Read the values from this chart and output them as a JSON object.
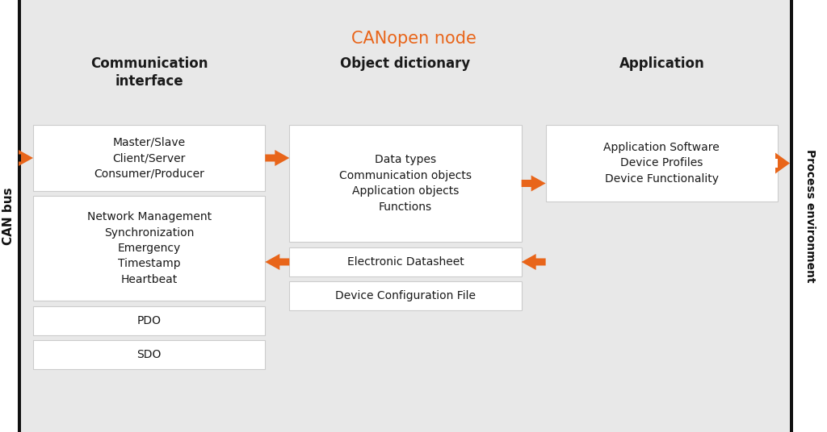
{
  "title": "CANopen node",
  "title_color": "#E8651A",
  "title_fontsize": 15,
  "bg_color": "#E8E8E8",
  "white_box_color": "#FFFFFF",
  "text_color": "#1A1A1A",
  "arrow_color": "#E8651A",
  "col1_header": "Communication\ninterface",
  "col2_header": "Object dictionary",
  "col3_header": "Application",
  "left_label": "CAN bus",
  "right_label": "Process environment",
  "box1_text": "Master/Slave\nClient/Server\nConsumer/Producer",
  "box2_text": "Network Management\nSynchronization\nEmergency\nTimestamp\nHeartbeat",
  "box3_text": "PDO",
  "box4_text": "SDO",
  "box5_text": "Data types\nCommunication objects\nApplication objects\nFunctions",
  "box6_text": "Electronic Datasheet",
  "box7_text": "Device Configuration File",
  "box8_text": "Application Software\nDevice Profiles\nDevice Functionality",
  "fig_w": 10.24,
  "fig_h": 5.36,
  "dpi": 100
}
